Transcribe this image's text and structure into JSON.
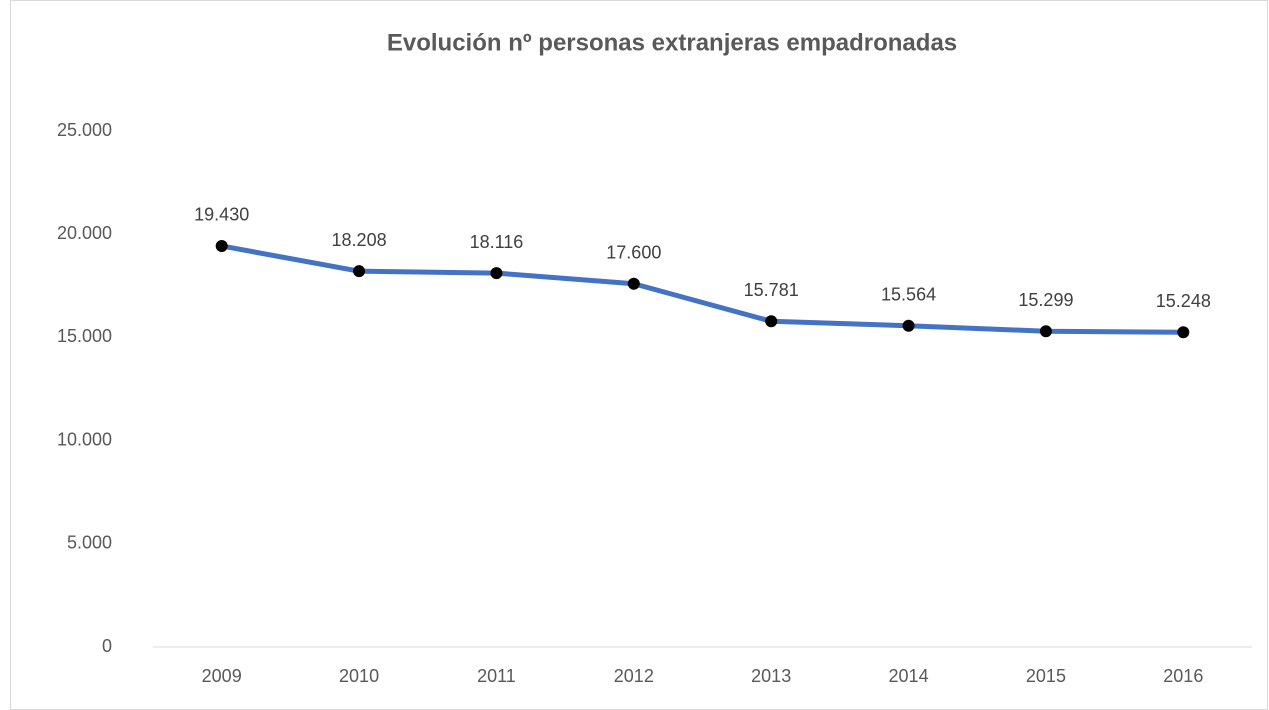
{
  "chart_data": {
    "type": "line",
    "title": "Evolución nº personas extranjeras empadronadas",
    "categories": [
      "2009",
      "2010",
      "2011",
      "2012",
      "2013",
      "2014",
      "2015",
      "2016"
    ],
    "values": [
      19430,
      18208,
      18116,
      17600,
      15781,
      15564,
      15299,
      15248
    ],
    "value_labels": [
      "19.430",
      "18.208",
      "18.116",
      "17.600",
      "15.781",
      "15.564",
      "15.299",
      "15.248"
    ],
    "color": "#4472c4",
    "marker_color": "#000000",
    "ylim": [
      0,
      25000
    ],
    "yticks": [
      0,
      {
        "value": 5000,
        "label": "5.000"
      },
      {
        "value": 10000,
        "label": "10.000"
      },
      {
        "value": 15000,
        "label": "15.000"
      },
      {
        "value": 20000,
        "label": "20.000"
      },
      {
        "value": 25000,
        "label": "25.000"
      }
    ],
    "grid": false
  }
}
